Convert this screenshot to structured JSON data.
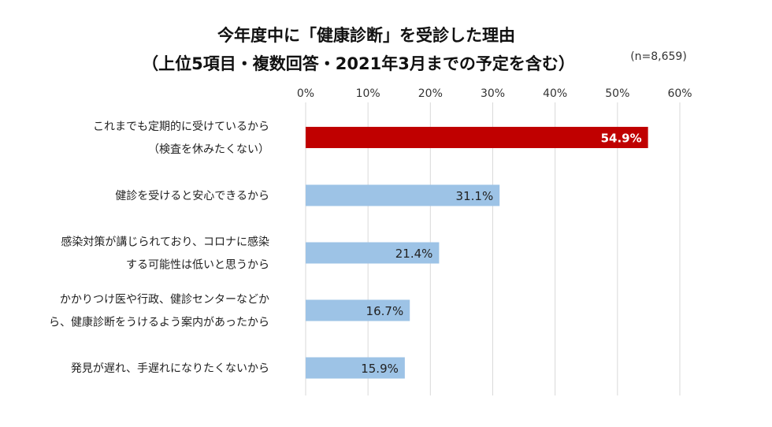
{
  "chart_data": {
    "type": "bar",
    "orientation": "horizontal",
    "title": "今年度中に「健康診断」を受診した理由",
    "subtitle": "（上位5項目・複数回答・2021年3月までの予定を含む）",
    "note": "(n=8,659)",
    "categories": [
      [
        "これまでも定期的に受けているから",
        "（検査を休みたくない）"
      ],
      [
        "健診を受けると安心できるから"
      ],
      [
        "感染対策が講じられており、コロナに感染",
        "する可能性は低いと思うから"
      ],
      [
        "かかりつけ医や行政、健診センターなどか",
        "ら、健康診断をうけるよう案内があったから"
      ],
      [
        "発見が遅れ、手遅れになりたくないから"
      ]
    ],
    "values": [
      54.9,
      31.1,
      21.4,
      16.7,
      15.9
    ],
    "data_labels": [
      "54.9%",
      "31.1%",
      "21.4%",
      "16.7%",
      "15.9%"
    ],
    "xlim": [
      0,
      60
    ],
    "xticks": [
      "0%",
      "10%",
      "20%",
      "30%",
      "40%",
      "50%",
      "60%"
    ],
    "grid": true,
    "colors": {
      "highlight": "#C00000",
      "default": "#9DC3E6",
      "grid": "#D9D9D9"
    }
  }
}
